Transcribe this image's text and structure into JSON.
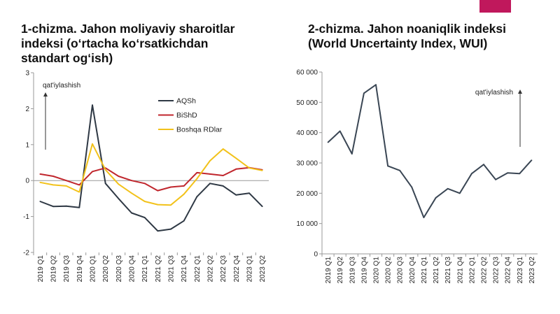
{
  "decor": {
    "corner_color": "#c0185c"
  },
  "chart_data": [
    {
      "type": "line",
      "title": [
        "1-chizma. Jahon moliyaviy sharoitlar",
        "indeksi (o‘rtacha ko‘rsatkichdan",
        "standart og‘ish)"
      ],
      "annotation": "qat'iylashish",
      "xlabel": "",
      "ylabel": "",
      "ylim": [
        -2,
        3
      ],
      "yticks": [
        "3",
        "2",
        "1",
        "0",
        "-1",
        "-2"
      ],
      "grid": false,
      "legend_position": "top-right",
      "categories": [
        "2019 Q1",
        "2019 Q2",
        "2019 Q3",
        "2019 Q4",
        "2020 Q1",
        "2020 Q2",
        "2020 Q3",
        "2020 Q4",
        "2021 Q1",
        "2021 Q2",
        "2021 Q3",
        "2021 Q4",
        "2022 Q1",
        "2022 Q2",
        "2022 Q3",
        "2022 Q4",
        "2023 Q1",
        "2023 Q2"
      ],
      "series": [
        {
          "name": "AQSh",
          "color": "#2e3844",
          "values": [
            -0.58,
            -0.72,
            -0.71,
            -0.75,
            2.1,
            -0.08,
            -0.5,
            -0.9,
            -1.03,
            -1.4,
            -1.35,
            -1.12,
            -0.45,
            -0.08,
            -0.15,
            -0.4,
            -0.35,
            -0.72
          ]
        },
        {
          "name": "BiShD",
          "color": "#c0262d",
          "values": [
            0.18,
            0.12,
            0.0,
            -0.12,
            0.25,
            0.35,
            0.12,
            0.0,
            -0.08,
            -0.28,
            -0.18,
            -0.15,
            0.22,
            0.18,
            0.14,
            0.32,
            0.36,
            0.3
          ]
        },
        {
          "name": "Boshqa RDlar",
          "color": "#f2c21b",
          "values": [
            -0.05,
            -0.12,
            -0.15,
            -0.32,
            1.02,
            0.3,
            -0.1,
            -0.35,
            -0.58,
            -0.67,
            -0.68,
            -0.38,
            0.05,
            0.55,
            0.88,
            0.62,
            0.35,
            0.28
          ]
        }
      ]
    },
    {
      "type": "line",
      "title": [
        "2-chizma. Jahon noaniqlik indeksi",
        "(World Uncertainty Index, WUI)"
      ],
      "annotation": "qat'iylashish",
      "xlabel": "",
      "ylabel": "",
      "ylim": [
        0,
        60000
      ],
      "yticks": [
        "60 000",
        "50 000",
        "40 000",
        "30 000",
        "20 000",
        "10 000",
        "0"
      ],
      "grid": false,
      "categories": [
        "2019 Q1",
        "2019 Q2",
        "2019 Q3",
        "2019 Q4",
        "2020 Q1",
        "2020 Q2",
        "2020 Q3",
        "2020 Q4",
        "2021 Q1",
        "2021 Q2",
        "2021 Q3",
        "2021 Q4",
        "2022 Q1",
        "2022 Q2",
        "2022 Q3",
        "2022 Q4",
        "2023 Q1",
        "2023 Q2"
      ],
      "series": [
        {
          "name": "",
          "color": "#3a4654",
          "values": [
            36800,
            40500,
            33000,
            53000,
            55800,
            29000,
            27500,
            22000,
            12000,
            18500,
            21500,
            20000,
            26500,
            29500,
            24500,
            26700,
            26500,
            30900
          ]
        }
      ]
    }
  ]
}
